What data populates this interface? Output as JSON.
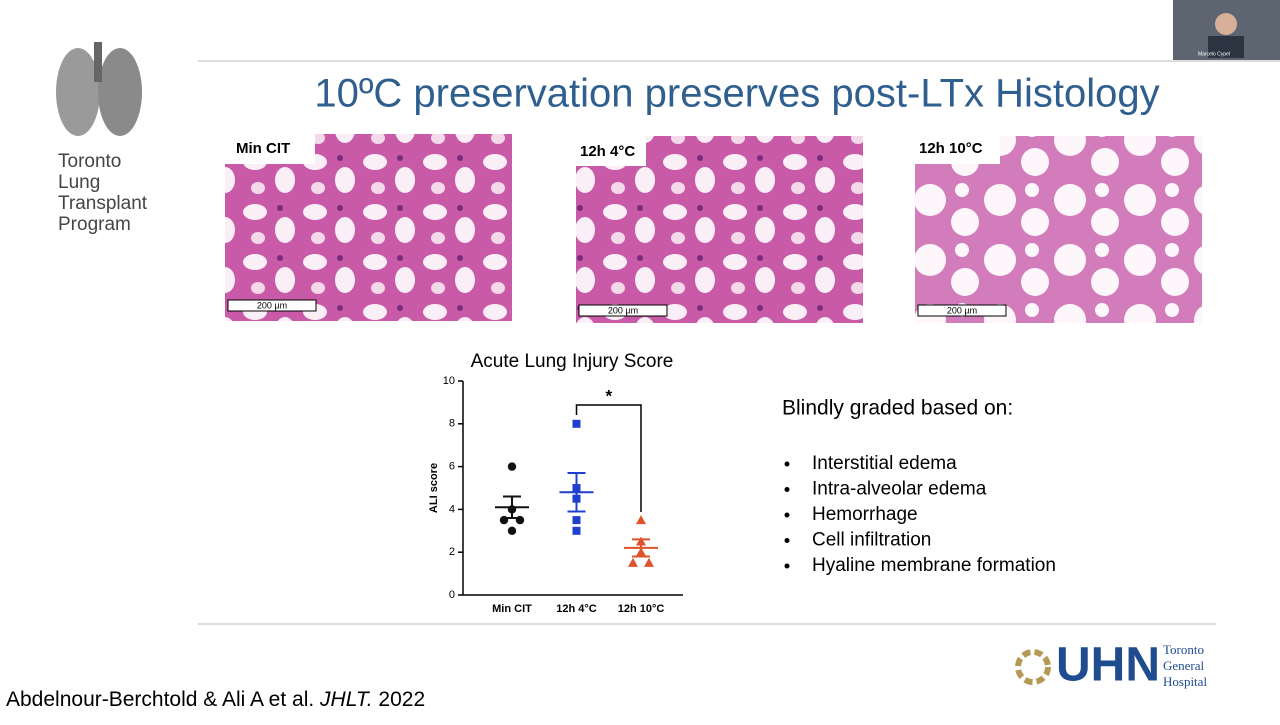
{
  "header": {
    "title": "10ºC preservation preserves post-LTx Histology"
  },
  "logo": {
    "lines": [
      "Toronto",
      "Lung",
      "Transplant",
      "Program"
    ]
  },
  "webcam": {
    "name": "Marcelo Cypel"
  },
  "images": [
    {
      "label": "Min CIT",
      "scale": "200 µm"
    },
    {
      "label": "12h 4°C",
      "scale": "200 µm"
    },
    {
      "label": "12h 10°C",
      "scale": "200 µm"
    }
  ],
  "chart_data": {
    "type": "dot",
    "title": "Acute Lung Injury Score",
    "y_label": "ALI score",
    "categories": [
      "Min CIT",
      "12h 4°C",
      "12h 10°C"
    ],
    "colors": [
      "#111111",
      "#1f3fd0",
      "#e0522a"
    ],
    "markers": [
      "circle",
      "square",
      "triangle"
    ],
    "values": [
      [
        6,
        4,
        3.5,
        3.5,
        3
      ],
      [
        8,
        5,
        4.5,
        3.5,
        3
      ],
      [
        3.5,
        2.5,
        2,
        1.5,
        1.5
      ]
    ],
    "means": [
      4.1,
      4.8,
      2.2
    ],
    "error_bars": [
      [
        3.6,
        4.6
      ],
      [
        3.9,
        5.7
      ],
      [
        1.8,
        2.6
      ]
    ],
    "ylim": [
      0,
      10
    ],
    "yticks": [
      0,
      2,
      4,
      6,
      8,
      10
    ],
    "annotation": "*"
  },
  "bullets": {
    "heading": "Blindly graded based on:",
    "items": [
      "Interstitial edema",
      "Intra-alveolar edema",
      "Hemorrhage",
      "Cell infiltration",
      "Hyaline membrane formation"
    ]
  },
  "citation": {
    "authors": "Abdelnour-Berchtold & Ali A et al.",
    "journal": "JHLT.",
    "year": "2022"
  },
  "uhn": {
    "mark": "UHN",
    "lines": [
      "Toronto",
      "General",
      "Hospital"
    ]
  }
}
